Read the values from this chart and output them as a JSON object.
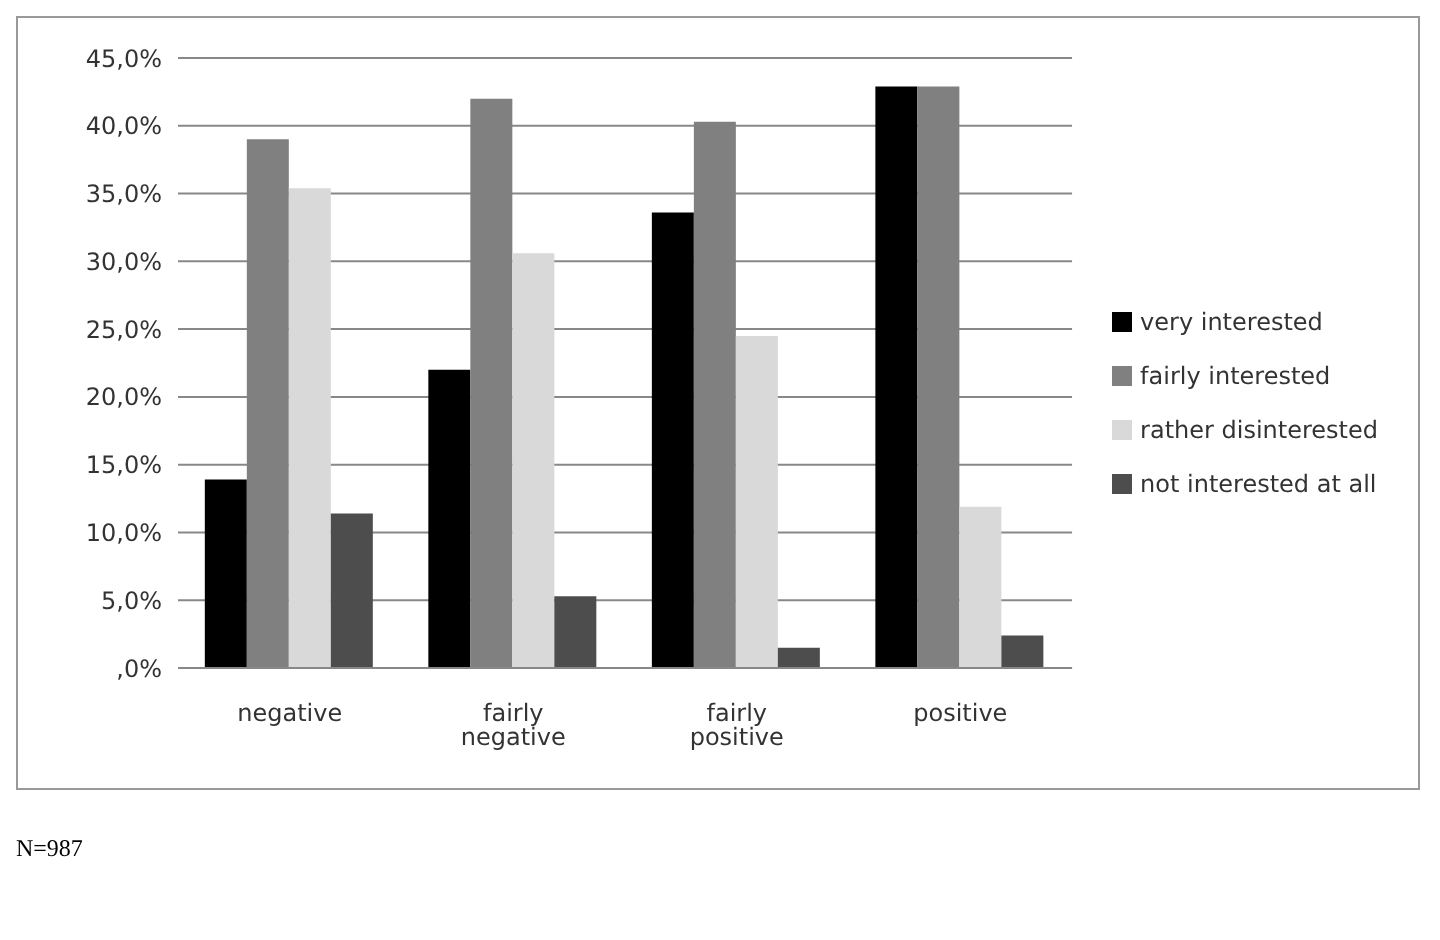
{
  "chart_data": {
    "type": "bar",
    "categories": [
      "negative",
      "fairly negative",
      "fairly positive",
      "positive"
    ],
    "series": [
      {
        "name": "very interested",
        "color": "#000000",
        "values": [
          13.9,
          22.0,
          33.6,
          42.9
        ]
      },
      {
        "name": "fairly interested",
        "color": "#808080",
        "values": [
          39.0,
          42.0,
          40.3,
          42.9
        ]
      },
      {
        "name": "rather disinterested",
        "color": "#d9d9d9",
        "values": [
          35.4,
          30.6,
          24.5,
          11.9
        ]
      },
      {
        "name": "not interested at all",
        "color": "#4d4d4d",
        "values": [
          11.4,
          5.3,
          1.5,
          2.4
        ]
      }
    ],
    "ylim": [
      0,
      45
    ],
    "yticks": [
      {
        "value": 0,
        "label": ",0%"
      },
      {
        "value": 5,
        "label": "5,0%"
      },
      {
        "value": 10,
        "label": "10,0%"
      },
      {
        "value": 15,
        "label": "15,0%"
      },
      {
        "value": 20,
        "label": "20,0%"
      },
      {
        "value": 25,
        "label": "25,0%"
      },
      {
        "value": 30,
        "label": "30,0%"
      },
      {
        "value": 35,
        "label": "35,0%"
      },
      {
        "value": 40,
        "label": "40,0%"
      },
      {
        "value": 45,
        "label": "45,0%"
      }
    ],
    "grid": "y",
    "legend": "right",
    "annotations": [
      "N=987"
    ]
  }
}
